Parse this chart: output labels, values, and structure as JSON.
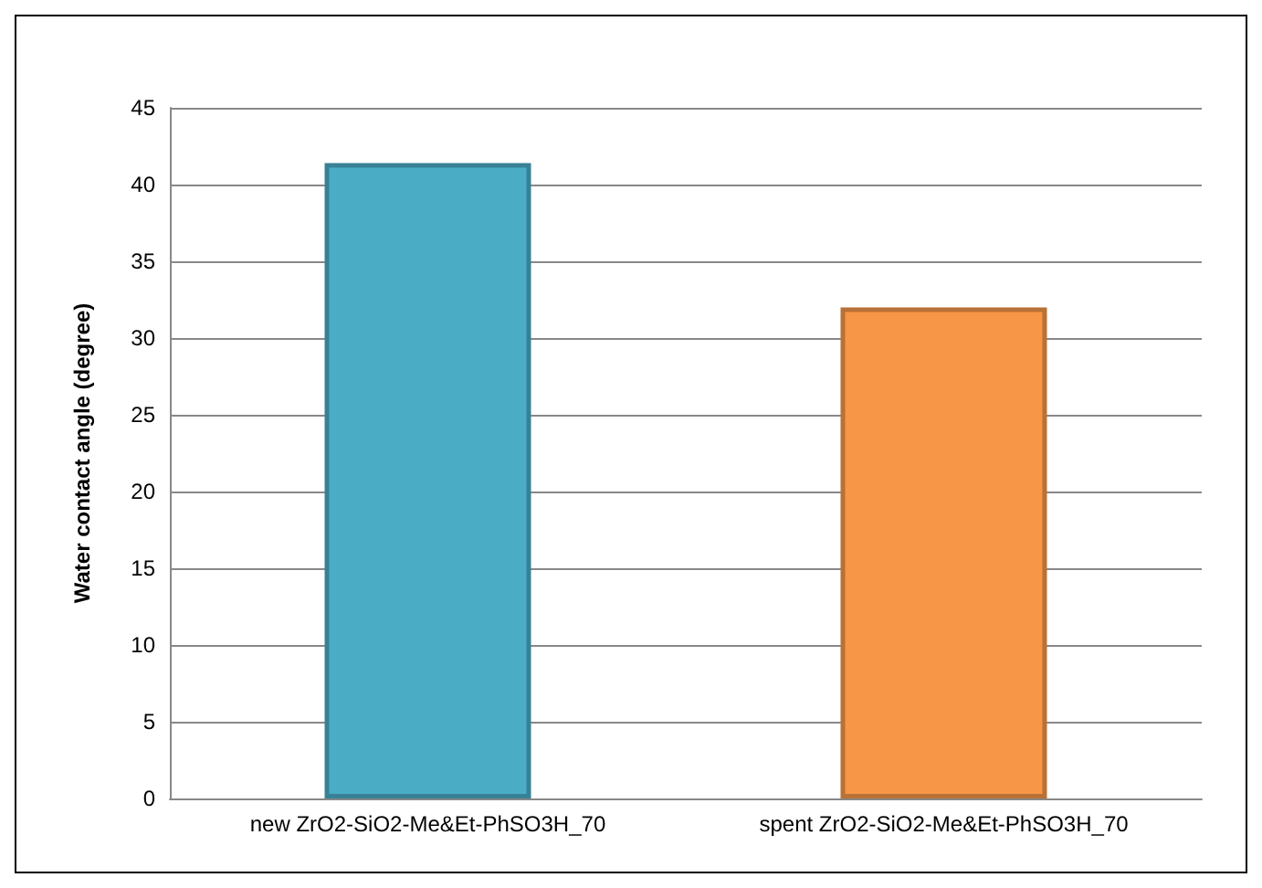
{
  "chart_data": {
    "type": "bar",
    "ylabel": "Water contact angle (degree)",
    "categories": [
      "new ZrO2-SiO2-Me&Et-PhSO3H_70",
      "spent ZrO2-SiO2-Me&Et-PhSO3H_70"
    ],
    "values": [
      41.4,
      32
    ],
    "colors": [
      "#4bacc6",
      "#f79646"
    ],
    "ylim": [
      0,
      45
    ],
    "yticks": [
      0,
      5,
      10,
      15,
      20,
      25,
      30,
      35,
      40,
      45
    ],
    "grid": "y"
  }
}
